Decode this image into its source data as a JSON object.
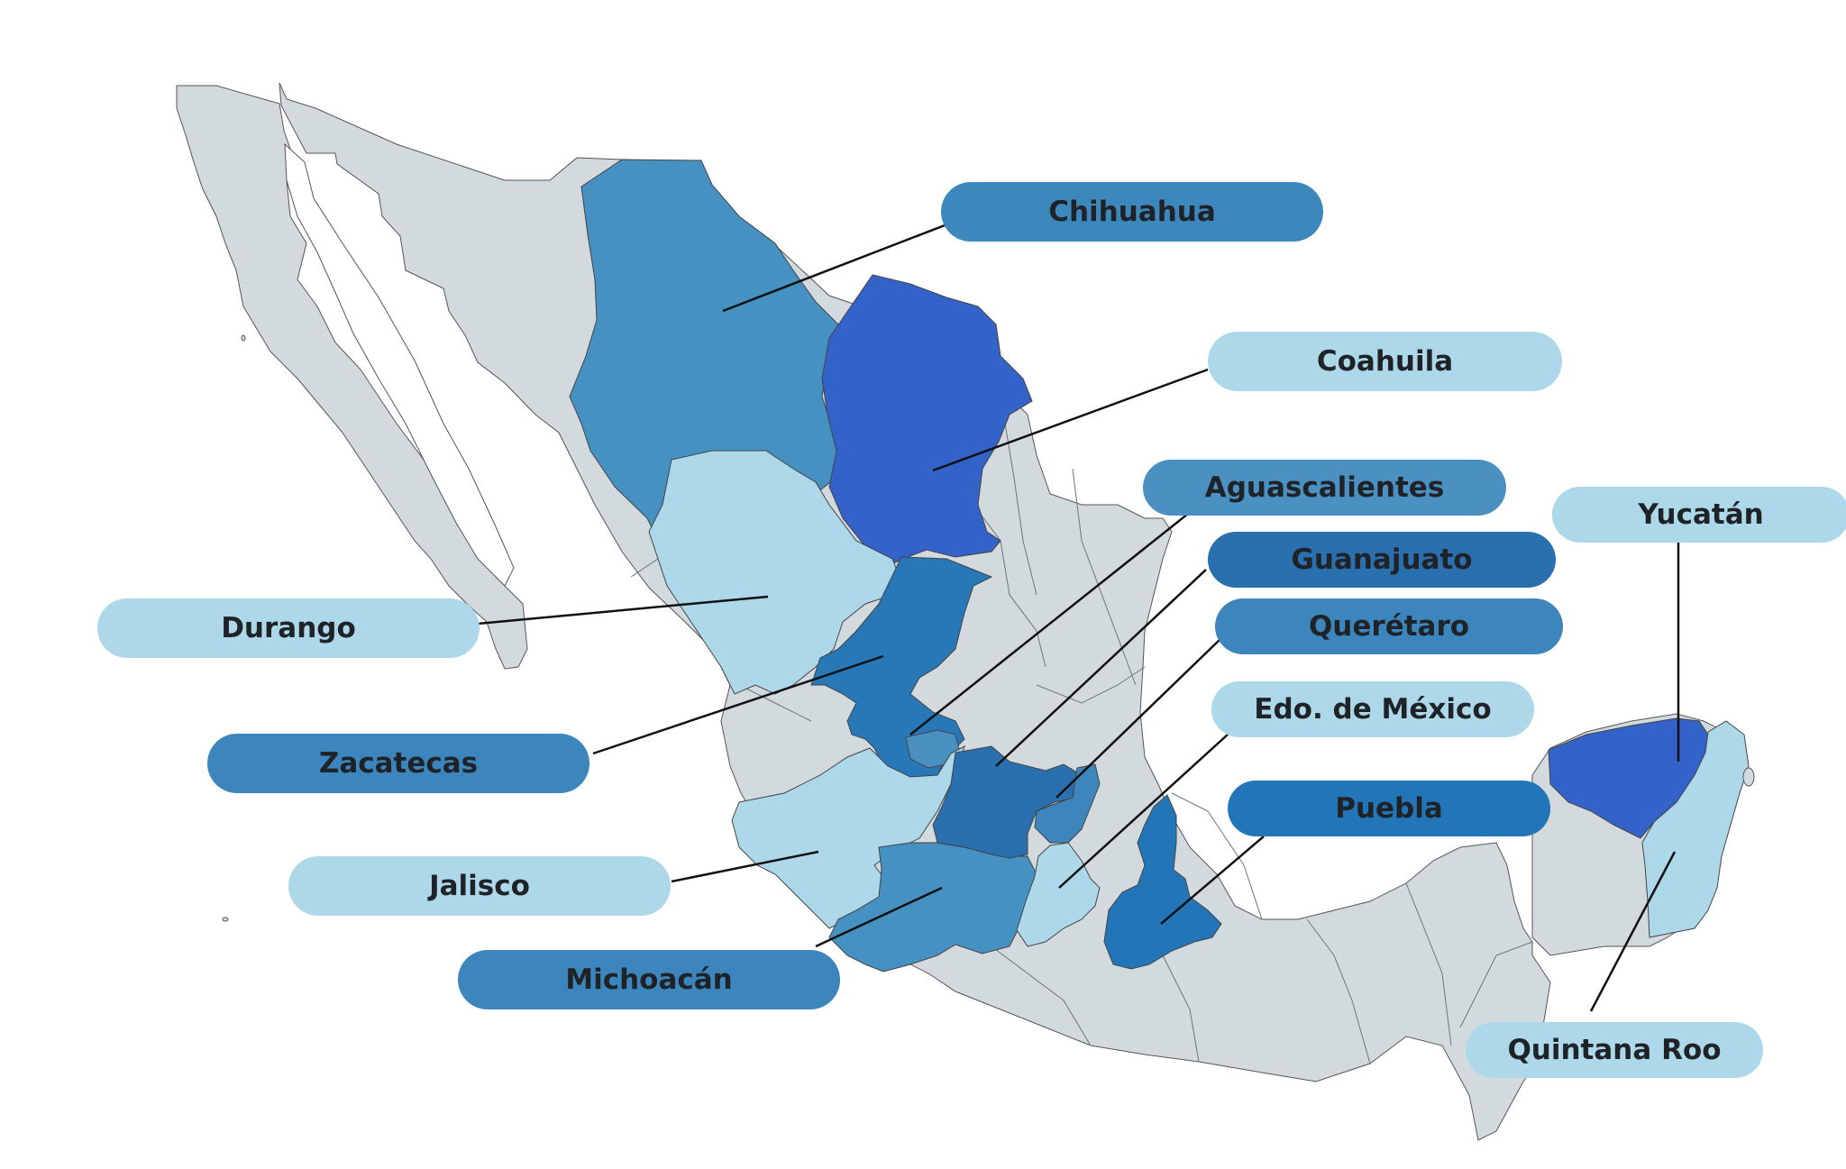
{
  "map": {
    "country": "Mexico",
    "colors": {
      "land": "#d3dadd",
      "border": "#555555",
      "leader_line": "#111111",
      "text": "#1f2328"
    },
    "highlighted_states": [
      {
        "id": "chihuahua",
        "label": "Chihuahua",
        "fill": "#4491c2",
        "pill": "#3c88bc"
      },
      {
        "id": "coahuila",
        "label": "Coahuila",
        "fill": "#3362c8",
        "pill": "#acd8ea"
      },
      {
        "id": "aguascalientes",
        "label": "Aguascalientes",
        "fill": "#4a90c0",
        "pill": "#4a90c0"
      },
      {
        "id": "guanajuato",
        "label": "Guanajuato",
        "fill": "#2a6fae",
        "pill": "#2a6fae"
      },
      {
        "id": "queretaro",
        "label": "Querétaro",
        "fill": "#3c86bd",
        "pill": "#3c86bd"
      },
      {
        "id": "edomex",
        "label": "Edo. de México",
        "fill": "#acd8ea",
        "pill": "#acd8ea"
      },
      {
        "id": "puebla",
        "label": "Puebla",
        "fill": "#2275b7",
        "pill": "#2275b7"
      },
      {
        "id": "yucatan",
        "label": "Yucatán",
        "fill": "#3362c8",
        "pill": "#acd8ea"
      },
      {
        "id": "quintana_roo",
        "label": "Quintana Roo",
        "fill": "#acd8ea",
        "pill": "#acd8ea"
      },
      {
        "id": "durango",
        "label": "Durango",
        "fill": "#acd8ea",
        "pill": "#acd8ea"
      },
      {
        "id": "zacatecas",
        "label": "Zacatecas",
        "fill": "#2877b6",
        "pill": "#3c86bd"
      },
      {
        "id": "jalisco",
        "label": "Jalisco",
        "fill": "#acd8ea",
        "pill": "#acd8ea"
      },
      {
        "id": "michoacan",
        "label": "Michoacán",
        "fill": "#4491c2",
        "pill": "#3c86bd"
      }
    ]
  }
}
